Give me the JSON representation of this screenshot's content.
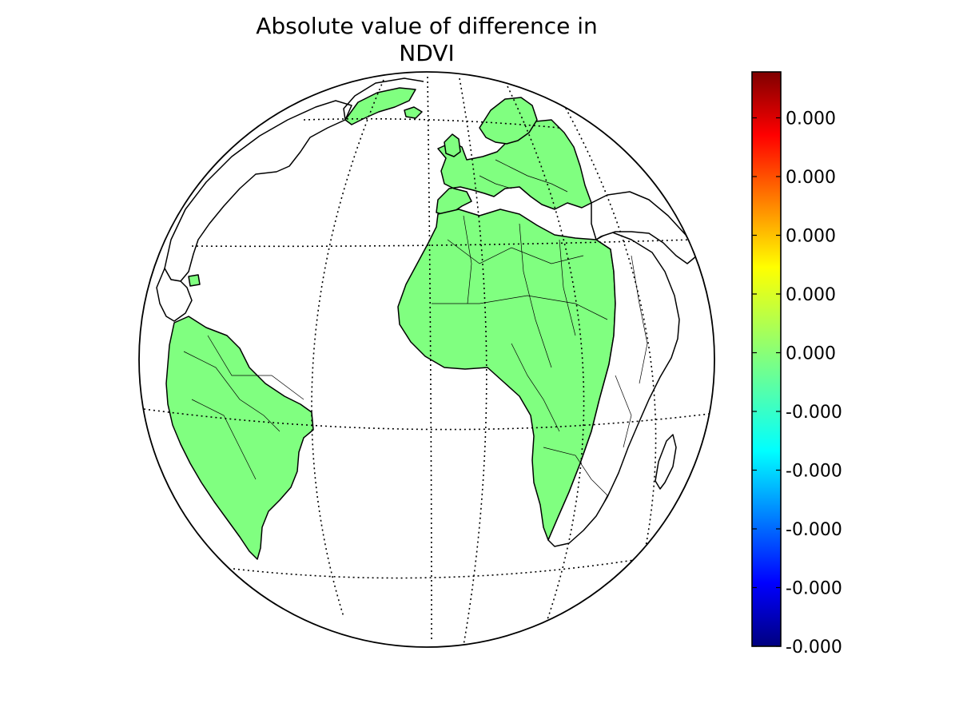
{
  "title_line1": "Absolute value of difference in",
  "title_line2": "NDVI",
  "map": {
    "projection": "orthographic",
    "land_fill_color": "#80ff80",
    "coastline_color": "#000000",
    "graticule_style": "dotted"
  },
  "colorbar": {
    "colormap": "jet",
    "orientation": "vertical",
    "tick_labels": [
      "0.000",
      "0.000",
      "0.000",
      "0.000",
      "0.000",
      "-0.000",
      "-0.000",
      "-0.000",
      "-0.000",
      "-0.000"
    ],
    "uniform_value_color": "#80ff80"
  }
}
